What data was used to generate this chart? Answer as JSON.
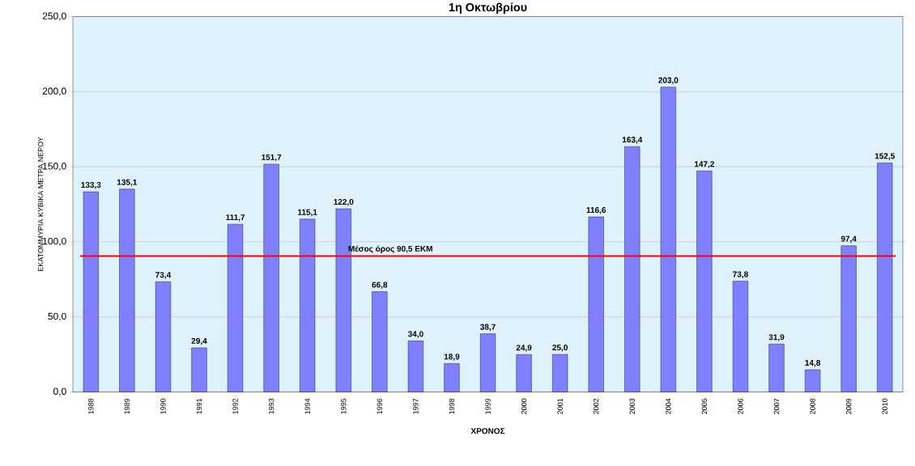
{
  "chart_data": {
    "type": "bar",
    "title": "1η Οκτωβρίου",
    "xlabel": "ΧΡΟΝΟΣ",
    "ylabel": "ΕΚΑΤΟΜΜΥΡΙΑ ΚΥΒΙΚΑ ΜΕΤΡΑ ΝΕΡΟΥ",
    "categories": [
      "1988",
      "1989",
      "1990",
      "1991",
      "1992",
      "1993",
      "1994",
      "1995",
      "1996",
      "1997",
      "1998",
      "1999",
      "2000",
      "2001",
      "2002",
      "2003",
      "2004",
      "2005",
      "2006",
      "2007",
      "2008",
      "2009",
      "2010"
    ],
    "values": [
      133.3,
      135.1,
      73.4,
      29.4,
      111.7,
      151.7,
      115.1,
      122.0,
      66.8,
      34.0,
      18.9,
      38.7,
      24.9,
      25.0,
      116.6,
      163.4,
      203.0,
      147.2,
      73.8,
      31.9,
      14.8,
      97.4,
      152.5
    ],
    "value_labels": [
      "133,3",
      "135,1",
      "73,4",
      "29,4",
      "111,7",
      "151,7",
      "115,1",
      "122,0",
      "66,8",
      "34,0",
      "18,9",
      "38,7",
      "24,9",
      "25,0",
      "116,6",
      "163,4",
      "203,0",
      "147,2",
      "73,8",
      "31,9",
      "14,8",
      "97,4",
      "152,5"
    ],
    "color": "#8080ff",
    "ylim": [
      0,
      250
    ],
    "yticks": [
      {
        "value": 0,
        "label": "0,0"
      },
      {
        "value": 50,
        "label": "50,0"
      },
      {
        "value": 100,
        "label": "100,0"
      },
      {
        "value": 150,
        "label": "150,0"
      },
      {
        "value": 200,
        "label": "200,0"
      },
      {
        "value": 250,
        "label": "250,0"
      }
    ],
    "grid": "y",
    "ref_lines": [
      {
        "axis": "y",
        "value": 90.5,
        "label": "Μέσος όρος 90,5 ΕΚΜ",
        "color": "#ff0000"
      }
    ]
  }
}
